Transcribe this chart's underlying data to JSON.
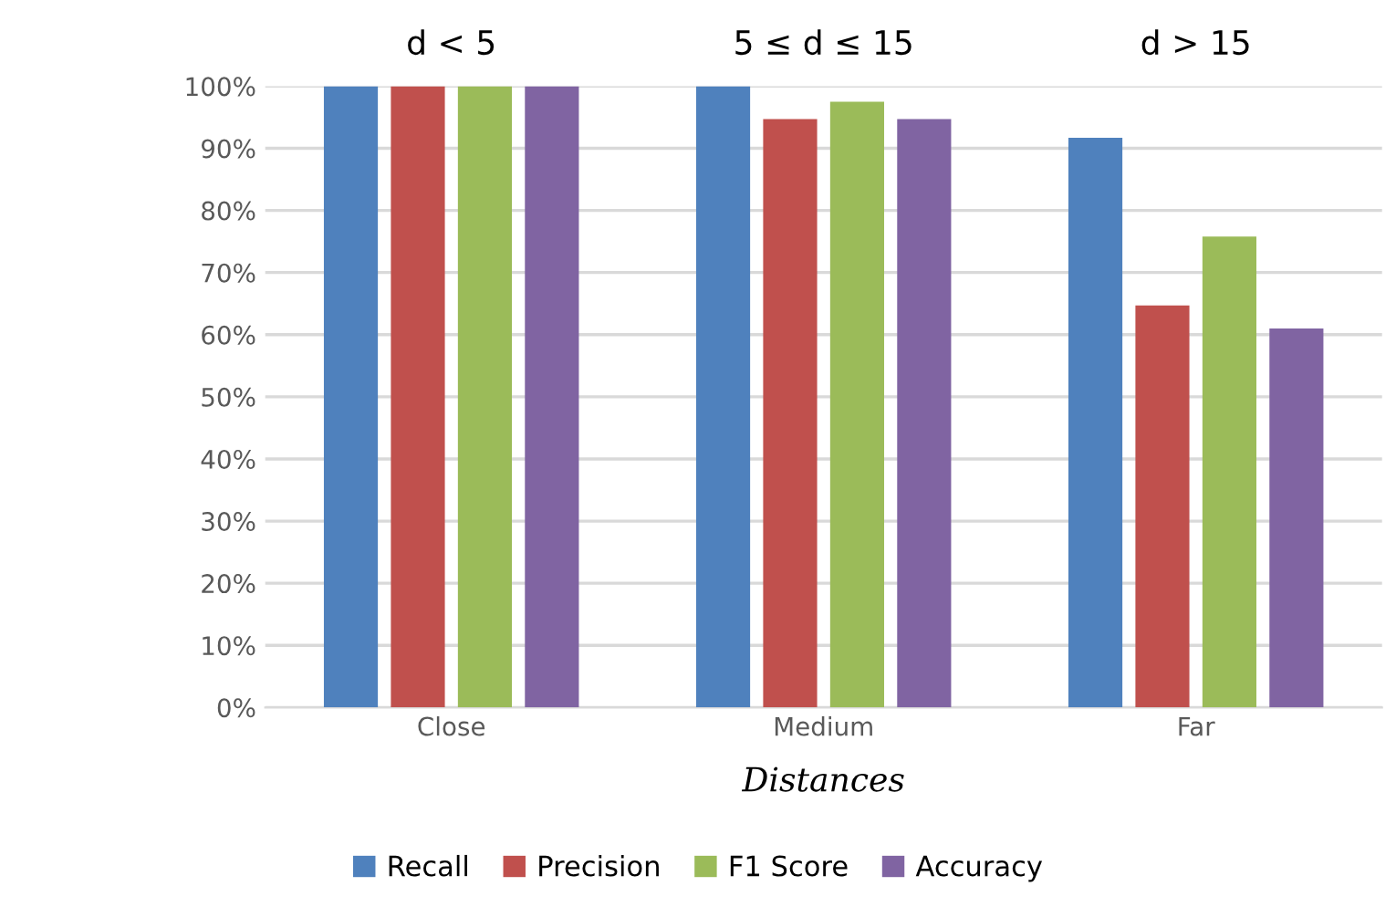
{
  "chart_data": {
    "type": "bar",
    "categories": [
      "Close",
      "Medium",
      "Far"
    ],
    "series": [
      {
        "name": "Recall",
        "color": "#4f81bd",
        "values": [
          100,
          100,
          91.7
        ]
      },
      {
        "name": "Precision",
        "color": "#c0504d",
        "values": [
          100,
          94.7,
          64.7
        ]
      },
      {
        "name": "F1 Score",
        "color": "#9bbb59",
        "values": [
          100,
          97.5,
          75.8
        ]
      },
      {
        "name": "Accuracy",
        "color": "#8064a2",
        "values": [
          100,
          94.7,
          61.0
        ]
      }
    ],
    "xlabel": "Distances",
    "annotations": [
      "d < 5",
      "5 ≤ d ≤ 15",
      "d > 15"
    ],
    "ylim": [
      0,
      100
    ],
    "yticks": [
      {
        "value": 0,
        "label": "0%"
      },
      {
        "value": 10,
        "label": "10%"
      },
      {
        "value": 20,
        "label": "20%"
      },
      {
        "value": 30,
        "label": "30%"
      },
      {
        "value": 40,
        "label": "40%"
      },
      {
        "value": 50,
        "label": "50%"
      },
      {
        "value": 60,
        "label": "60%"
      },
      {
        "value": 70,
        "label": "70%"
      },
      {
        "value": 80,
        "label": "80%"
      },
      {
        "value": 90,
        "label": "90%"
      },
      {
        "value": 100,
        "label": "100%"
      }
    ],
    "grid": "y",
    "legend": "bottom"
  }
}
